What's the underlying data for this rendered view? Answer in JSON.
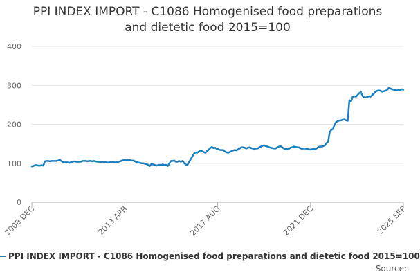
{
  "chart_data": {
    "type": "line",
    "title_line1": "PPI INDEX IMPORT - C1086 Homogenised food preparations",
    "title_line2": "and dietetic food 2015=100",
    "xlabel": "",
    "ylabel": "",
    "ylim": [
      0,
      400
    ],
    "yticks": [
      "0",
      "100",
      "200",
      "300",
      "400"
    ],
    "xticks": [
      "2008 DEC",
      "2013 APR",
      "2017 AUG",
      "2021 DEC",
      "2025 SEP"
    ],
    "grid": true,
    "legend": "bottom",
    "source_label": "Source:",
    "series": [
      {
        "name": "PPI INDEX IMPORT - C1086 Homogenised food preparations and dietetic food 2015=100",
        "color": "#1a7fc1",
        "values": [
          92,
          93,
          95,
          95,
          94,
          94,
          95,
          94,
          105,
          106,
          106,
          105,
          106,
          106,
          106,
          106,
          107,
          109,
          106,
          103,
          102,
          103,
          102,
          101,
          103,
          104,
          105,
          104,
          104,
          104,
          104,
          106,
          106,
          106,
          105,
          106,
          106,
          105,
          106,
          105,
          104,
          104,
          103,
          104,
          103,
          103,
          102,
          102,
          103,
          104,
          103,
          102,
          103,
          104,
          105,
          107,
          108,
          109,
          109,
          108,
          108,
          107,
          107,
          105,
          103,
          102,
          101,
          100,
          100,
          99,
          98,
          96,
          93,
          98,
          97,
          96,
          94,
          95,
          96,
          95,
          97,
          95,
          96,
          93,
          99,
          106,
          106,
          107,
          104,
          104,
          106,
          104,
          106,
          101,
          97,
          95,
          103,
          110,
          117,
          124,
          128,
          127,
          130,
          133,
          131,
          129,
          127,
          131,
          135,
          139,
          142,
          139,
          140,
          137,
          136,
          134,
          134,
          134,
          130,
          128,
          127,
          129,
          131,
          133,
          134,
          133,
          136,
          138,
          141,
          141,
          140,
          138,
          140,
          141,
          139,
          138,
          137,
          138,
          138,
          141,
          143,
          145,
          146,
          144,
          143,
          141,
          140,
          139,
          138,
          138,
          141,
          143,
          144,
          141,
          138,
          136,
          137,
          137,
          140,
          141,
          143,
          142,
          141,
          141,
          139,
          137,
          138,
          138,
          137,
          136,
          135,
          136,
          137,
          136,
          138,
          142,
          143,
          143,
          144,
          146,
          152,
          155,
          180,
          186,
          188,
          200,
          206,
          208,
          210,
          210,
          212,
          212,
          210,
          209,
          262,
          258,
          270,
          272,
          271,
          275,
          280,
          283,
          273,
          270,
          269,
          270,
          272,
          271,
          275,
          279,
          284,
          286,
          287,
          286,
          284,
          285,
          286,
          288,
          293,
          292,
          290,
          289,
          288,
          287,
          288,
          288,
          290,
          289
        ]
      }
    ]
  }
}
